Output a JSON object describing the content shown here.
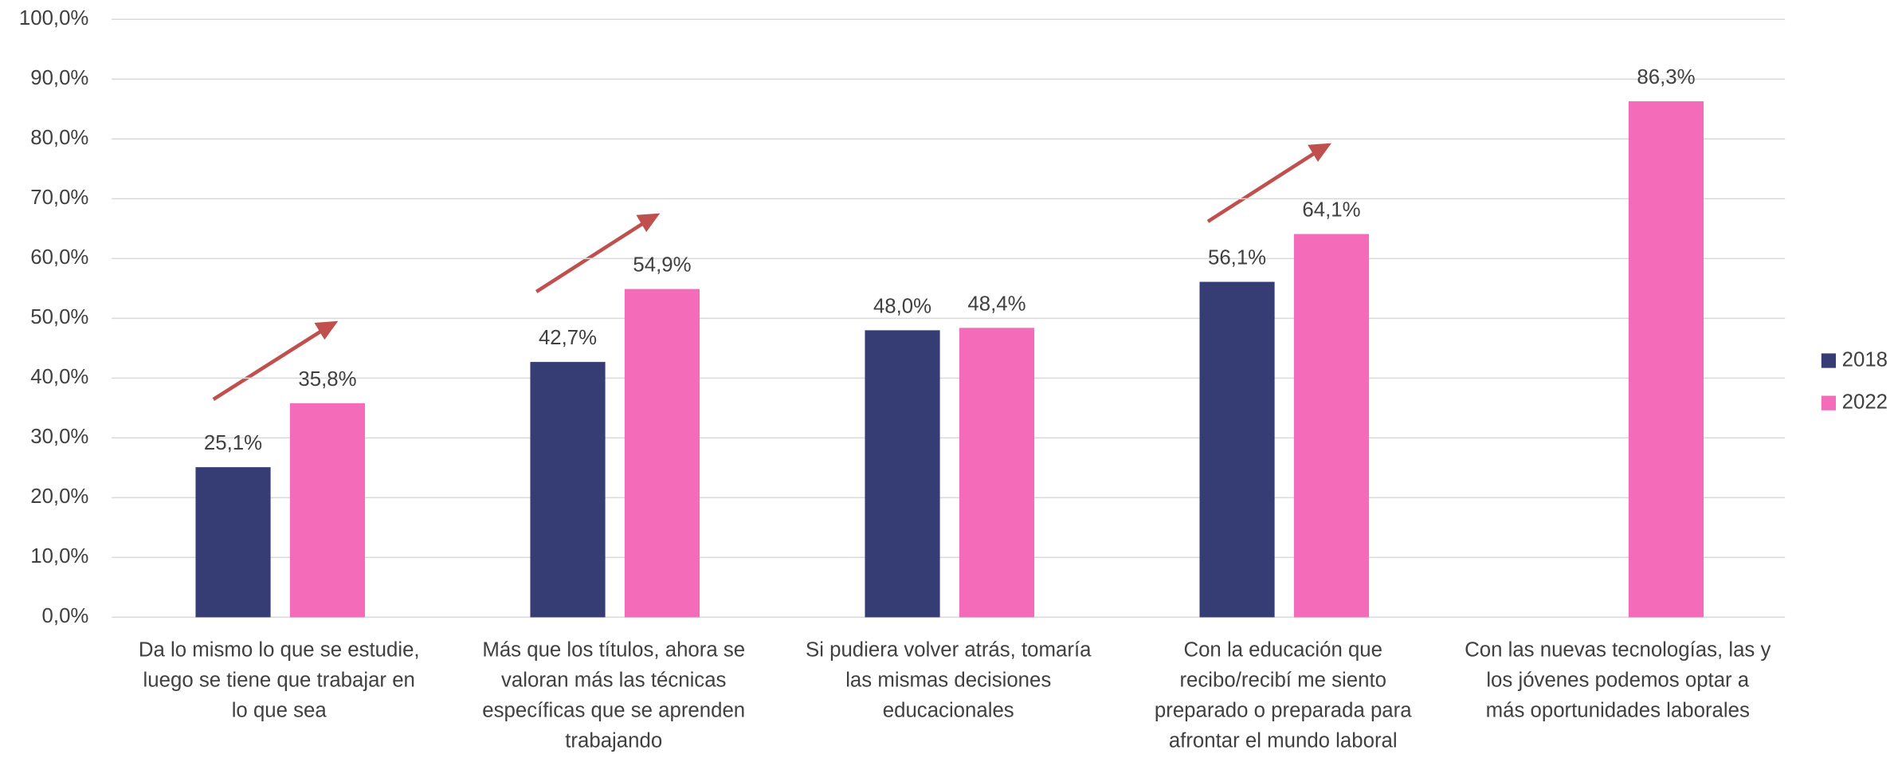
{
  "chart_data": {
    "type": "bar",
    "categories": [
      [
        "Da lo mismo lo que se estudie,",
        "luego se tiene que trabajar en",
        "lo que sea"
      ],
      [
        "Más que los títulos, ahora se",
        "valoran más las técnicas",
        "específicas que se aprenden",
        "trabajando"
      ],
      [
        "Si pudiera volver atrás, tomaría",
        "las mismas decisiones",
        "educacionales"
      ],
      [
        "Con la educación que",
        "recibo/recibí me siento",
        "preparado o preparada para",
        "afrontar el mundo laboral"
      ],
      [
        "Con las nuevas tecnologías, las y",
        "los jóvenes podemos optar a",
        "más oportunidades laborales"
      ]
    ],
    "series": [
      {
        "name": "2018",
        "color": "#363d75",
        "values": [
          25.1,
          42.7,
          48.0,
          56.1,
          null
        ],
        "value_labels": [
          "25,1%",
          "42,7%",
          "48,0%",
          "56,1%",
          null
        ]
      },
      {
        "name": "2022",
        "color": "#f46bb9",
        "values": [
          35.8,
          54.9,
          48.4,
          64.1,
          86.3
        ],
        "value_labels": [
          "35,8%",
          "54,9%",
          "48,4%",
          "64,1%",
          "86,3%"
        ]
      }
    ],
    "ylim": [
      0,
      100
    ],
    "yticks": [
      {
        "value": 0,
        "label": "0,0%"
      },
      {
        "value": 10,
        "label": "10,0%"
      },
      {
        "value": 20,
        "label": "20,0%"
      },
      {
        "value": 30,
        "label": "30,0%"
      },
      {
        "value": 40,
        "label": "40,0%"
      },
      {
        "value": 50,
        "label": "50,0%"
      },
      {
        "value": 60,
        "label": "60,0%"
      },
      {
        "value": 70,
        "label": "70,0%"
      },
      {
        "value": 80,
        "label": "80,0%"
      },
      {
        "value": 90,
        "label": "90,0%"
      },
      {
        "value": 100,
        "label": "100,0%"
      }
    ],
    "grid": true,
    "legend": "right"
  }
}
